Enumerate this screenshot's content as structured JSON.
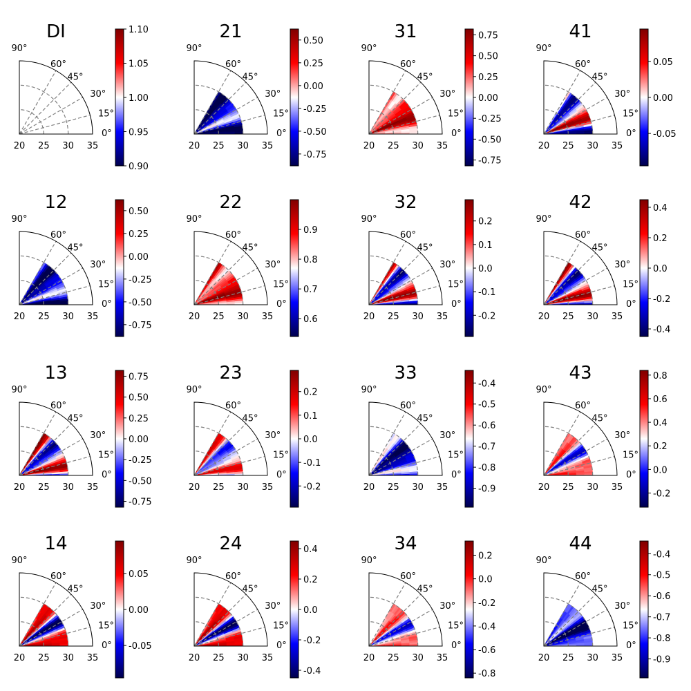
{
  "figure": {
    "rows": 4,
    "cols": 4,
    "angle_ticks": [
      "0°",
      "15°",
      "30°",
      "45°",
      "60°",
      "90°"
    ],
    "r_ticks": [
      "20",
      "25",
      "30",
      "35"
    ],
    "colormap": "seismic"
  },
  "chart_data": [
    {
      "type": "heatmap",
      "title": "DI",
      "colorbar": {
        "min": 0.9,
        "max": 1.1,
        "ticks": [
          "0.90",
          "0.95",
          "1.00",
          "1.05",
          "1.10"
        ]
      },
      "pattern": "uniform",
      "r_range": [
        20,
        35
      ],
      "data_r_max": 30,
      "theta_range": [
        0,
        90
      ],
      "data_theta_max": 60
    },
    {
      "type": "heatmap",
      "title": "21",
      "colorbar": {
        "min": -0.88,
        "max": 0.62,
        "ticks": [
          "-0.75",
          "-0.50",
          "-0.25",
          "0.00",
          "0.25",
          "0.50"
        ]
      },
      "pattern": "blue-dominant",
      "r_range": [
        20,
        35
      ],
      "data_r_max": 30,
      "theta_range": [
        0,
        90
      ],
      "data_theta_max": 60
    },
    {
      "type": "heatmap",
      "title": "31",
      "colorbar": {
        "min": -0.82,
        "max": 0.82,
        "ticks": [
          "-0.75",
          "-0.50",
          "-0.25",
          "0.00",
          "0.25",
          "0.50",
          "0.75"
        ]
      },
      "pattern": "red-dominant",
      "r_range": [
        20,
        35
      ],
      "data_r_max": 30,
      "theta_range": [
        0,
        90
      ],
      "data_theta_max": 60
    },
    {
      "type": "heatmap",
      "title": "41",
      "colorbar": {
        "min": -0.095,
        "max": 0.095,
        "ticks": [
          "-0.05",
          "0.00",
          "0.05"
        ]
      },
      "pattern": "mixed",
      "r_range": [
        20,
        35
      ],
      "data_r_max": 30,
      "theta_range": [
        0,
        90
      ],
      "data_theta_max": 60
    },
    {
      "type": "heatmap",
      "title": "12",
      "colorbar": {
        "min": -0.88,
        "max": 0.62,
        "ticks": [
          "-0.75",
          "-0.50",
          "-0.25",
          "0.00",
          "0.25",
          "0.50"
        ]
      },
      "pattern": "blue-dominant",
      "r_range": [
        20,
        35
      ],
      "data_r_max": 30,
      "theta_range": [
        0,
        90
      ],
      "data_theta_max": 60
    },
    {
      "type": "heatmap",
      "title": "22",
      "colorbar": {
        "min": 0.54,
        "max": 1.0,
        "ticks": [
          "0.6",
          "0.7",
          "0.8",
          "0.9"
        ]
      },
      "pattern": "red-dominant",
      "r_range": [
        20,
        35
      ],
      "data_r_max": 30,
      "theta_range": [
        0,
        90
      ],
      "data_theta_max": 60
    },
    {
      "type": "heatmap",
      "title": "32",
      "colorbar": {
        "min": -0.29,
        "max": 0.29,
        "ticks": [
          "-0.2",
          "-0.1",
          "0.0",
          "0.1",
          "0.2"
        ]
      },
      "pattern": "mixed",
      "r_range": [
        20,
        35
      ],
      "data_r_max": 30,
      "theta_range": [
        0,
        90
      ],
      "data_theta_max": 60
    },
    {
      "type": "heatmap",
      "title": "42",
      "colorbar": {
        "min": -0.45,
        "max": 0.45,
        "ticks": [
          "-0.4",
          "-0.2",
          "0.0",
          "0.2",
          "0.4"
        ]
      },
      "pattern": "mixed",
      "r_range": [
        20,
        35
      ],
      "data_r_max": 30,
      "theta_range": [
        0,
        90
      ],
      "data_theta_max": 60
    },
    {
      "type": "heatmap",
      "title": "13",
      "colorbar": {
        "min": -0.82,
        "max": 0.82,
        "ticks": [
          "-0.75",
          "-0.50",
          "-0.25",
          "0.00",
          "0.25",
          "0.50",
          "0.75"
        ]
      },
      "pattern": "mixed",
      "r_range": [
        20,
        35
      ],
      "data_r_max": 30,
      "theta_range": [
        0,
        90
      ],
      "data_theta_max": 60
    },
    {
      "type": "heatmap",
      "title": "23",
      "colorbar": {
        "min": -0.29,
        "max": 0.29,
        "ticks": [
          "-0.2",
          "-0.1",
          "0.0",
          "0.1",
          "0.2"
        ]
      },
      "pattern": "light-mixed",
      "r_range": [
        20,
        35
      ],
      "data_r_max": 30,
      "theta_range": [
        0,
        90
      ],
      "data_theta_max": 60
    },
    {
      "type": "heatmap",
      "title": "33",
      "colorbar": {
        "min": -0.99,
        "max": -0.34,
        "ticks": [
          "-0.9",
          "-0.8",
          "-0.7",
          "-0.6",
          "-0.5",
          "-0.4"
        ]
      },
      "pattern": "blue-dominant",
      "r_range": [
        20,
        35
      ],
      "data_r_max": 30,
      "theta_range": [
        0,
        90
      ],
      "data_theta_max": 60
    },
    {
      "type": "heatmap",
      "title": "43",
      "colorbar": {
        "min": -0.32,
        "max": 0.84,
        "ticks": [
          "-0.2",
          "0.0",
          "0.2",
          "0.4",
          "0.6",
          "0.8"
        ]
      },
      "pattern": "light-mixed",
      "r_range": [
        20,
        35
      ],
      "data_r_max": 30,
      "theta_range": [
        0,
        90
      ],
      "data_theta_max": 60
    },
    {
      "type": "heatmap",
      "title": "14",
      "colorbar": {
        "min": -0.095,
        "max": 0.095,
        "ticks": [
          "-0.05",
          "0.00",
          "0.05"
        ]
      },
      "pattern": "mixed",
      "r_range": [
        20,
        35
      ],
      "data_r_max": 30,
      "theta_range": [
        0,
        90
      ],
      "data_theta_max": 60
    },
    {
      "type": "heatmap",
      "title": "24",
      "colorbar": {
        "min": -0.45,
        "max": 0.45,
        "ticks": [
          "-0.4",
          "-0.2",
          "0.0",
          "0.2",
          "0.4"
        ]
      },
      "pattern": "mixed",
      "r_range": [
        20,
        35
      ],
      "data_r_max": 30,
      "theta_range": [
        0,
        90
      ],
      "data_theta_max": 60
    },
    {
      "type": "heatmap",
      "title": "34",
      "colorbar": {
        "min": -0.84,
        "max": 0.32,
        "ticks": [
          "-0.8",
          "-0.6",
          "-0.4",
          "-0.2",
          "0.0",
          "0.2"
        ]
      },
      "pattern": "light-mixed",
      "r_range": [
        20,
        35
      ],
      "data_r_max": 30,
      "theta_range": [
        0,
        90
      ],
      "data_theta_max": 60
    },
    {
      "type": "heatmap",
      "title": "44",
      "colorbar": {
        "min": -0.99,
        "max": -0.34,
        "ticks": [
          "-0.9",
          "-0.8",
          "-0.7",
          "-0.6",
          "-0.5",
          "-0.4"
        ]
      },
      "pattern": "blue-dominant",
      "r_range": [
        20,
        35
      ],
      "data_r_max": 30,
      "theta_range": [
        0,
        90
      ],
      "data_theta_max": 60
    }
  ]
}
